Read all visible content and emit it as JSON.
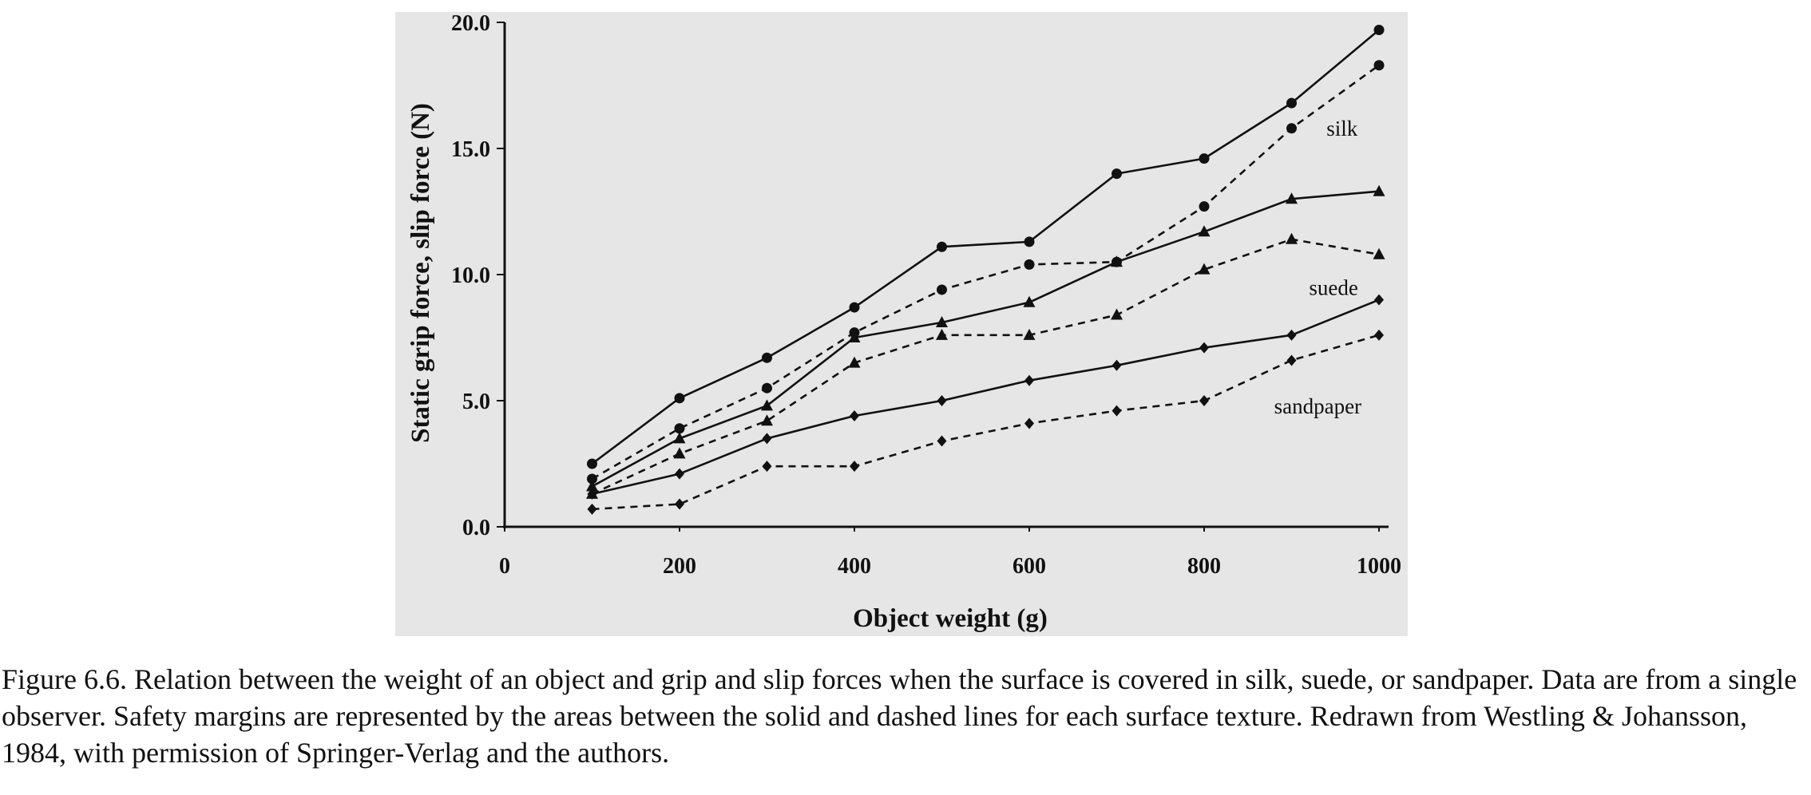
{
  "chart_data": {
    "type": "line",
    "xlabel": "Object weight (g)",
    "ylabel": "Static grip force, slip force (N)",
    "xlim": [
      0,
      1000
    ],
    "ylim": [
      0,
      20
    ],
    "x_ticks": [
      "0",
      "200",
      "400",
      "600",
      "800",
      "1000"
    ],
    "y_ticks": [
      "0.0",
      "5.0",
      "10.0",
      "15.0",
      "20.0"
    ],
    "grid": false,
    "x": [
      100,
      200,
      300,
      400,
      500,
      600,
      700,
      800,
      900,
      1000
    ],
    "series": [
      {
        "group": "silk",
        "kind": "grip force",
        "line": "solid",
        "marker": "circle",
        "values": [
          2.5,
          5.1,
          6.7,
          8.7,
          11.1,
          11.3,
          14.0,
          14.6,
          16.8,
          19.7
        ]
      },
      {
        "group": "silk",
        "kind": "slip force",
        "line": "dashed",
        "marker": "circle",
        "values": [
          1.9,
          3.9,
          5.5,
          7.7,
          9.4,
          10.4,
          10.5,
          12.7,
          15.8,
          18.3
        ]
      },
      {
        "group": "suede",
        "kind": "grip force",
        "line": "solid",
        "marker": "triangle",
        "values": [
          1.6,
          3.5,
          4.8,
          7.5,
          8.1,
          8.9,
          10.5,
          11.7,
          13.0,
          13.3
        ]
      },
      {
        "group": "suede",
        "kind": "slip force",
        "line": "dashed",
        "marker": "triangle",
        "values": [
          1.3,
          2.9,
          4.2,
          6.5,
          7.6,
          7.6,
          8.4,
          10.2,
          11.4,
          10.8
        ]
      },
      {
        "group": "sandpaper",
        "kind": "grip force",
        "line": "solid",
        "marker": "diamond",
        "values": [
          1.3,
          2.1,
          3.5,
          4.4,
          5.0,
          5.8,
          6.4,
          7.1,
          7.6,
          9.0
        ]
      },
      {
        "group": "sandpaper",
        "kind": "slip force",
        "line": "dashed",
        "marker": "diamond",
        "values": [
          0.7,
          0.9,
          2.4,
          2.4,
          3.4,
          4.1,
          4.6,
          5.0,
          6.6,
          7.6
        ]
      }
    ],
    "annotations": [
      {
        "text": "silk",
        "at": {
          "x": 940,
          "y": 15.5
        }
      },
      {
        "text": "suede",
        "at": {
          "x": 920,
          "y": 9.2
        }
      },
      {
        "text": "sandpaper",
        "at": {
          "x": 880,
          "y": 4.5
        }
      }
    ],
    "colors": {
      "background": "#e6e6e6",
      "line": "#111111",
      "caption_text": "#111111"
    }
  },
  "caption": "Figure 6.6. Relation between the weight of an object and grip and slip forces when the surface is covered in silk, suede, or sandpaper. Data are from a single observer. Safety margins are represented by the areas between the solid and dashed lines for each surface texture. Redrawn from Westling & Johansson, 1984, with permission of Springer-Verlag and the authors."
}
